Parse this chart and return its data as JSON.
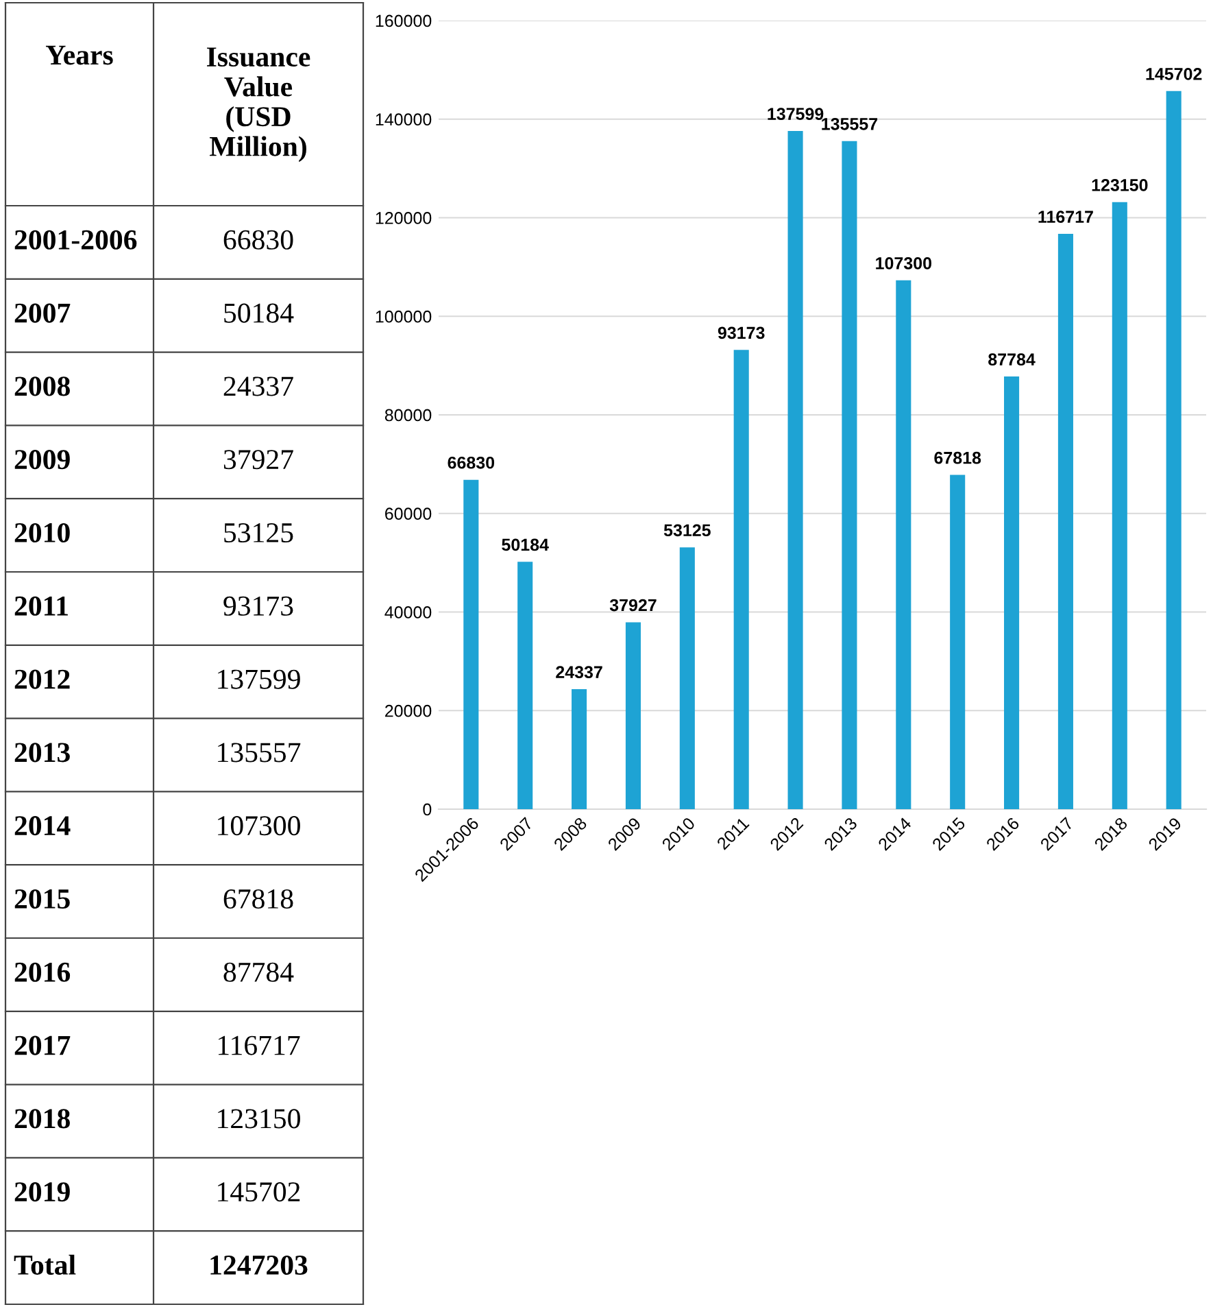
{
  "chart_data": {
    "type": "bar",
    "categories": [
      "2001-2006",
      "2007",
      "2008",
      "2009",
      "2010",
      "2011",
      "2012",
      "2013",
      "2014",
      "2015",
      "2016",
      "2017",
      "2018",
      "2019"
    ],
    "values": [
      66830,
      50184,
      24337,
      37927,
      53125,
      93173,
      137599,
      135557,
      107300,
      67818,
      87784,
      116717,
      123150,
      145702
    ],
    "color": "#1ea3d4",
    "ylim": [
      0,
      160000
    ],
    "yticks": [
      0,
      20000,
      40000,
      60000,
      80000,
      100000,
      120000,
      140000,
      160000
    ],
    "grid": "y",
    "data_labels": true,
    "annotations": [
      "Years",
      "Issuance Value (USD Million)",
      "66830",
      "50184",
      "24337",
      "37927",
      "53125",
      "93173",
      "137599",
      "135557",
      "107300",
      "67818",
      "87784",
      "116717",
      "123150",
      "145702",
      "Total",
      "1247203"
    ]
  }
}
